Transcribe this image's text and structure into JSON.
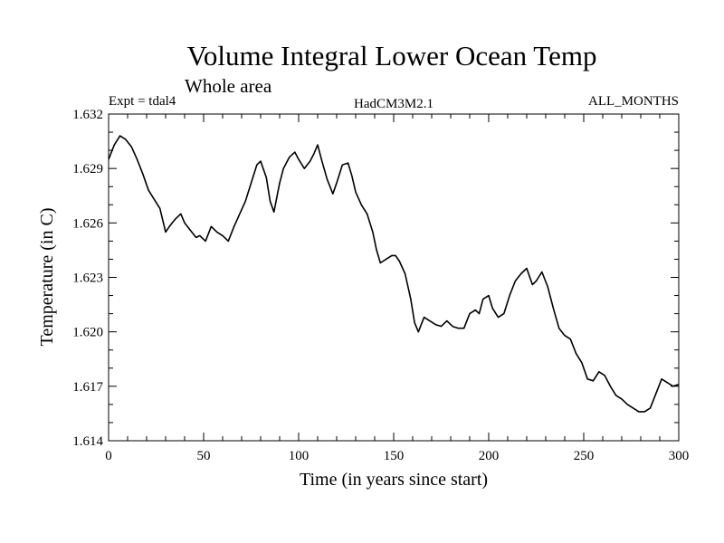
{
  "chart_data": {
    "type": "line",
    "title": "Volume Integral Lower Ocean Temp",
    "subtitle": "Whole area",
    "expt_label": "Expt = tdal4",
    "model_label": "HadCM3M2.1",
    "months_label": "ALL_MONTHS",
    "xlabel": "Time (in years since start)",
    "ylabel": "Temperature (in C)",
    "xlim": [
      0,
      300
    ],
    "ylim": [
      1.614,
      1.632
    ],
    "x_ticks": [
      0,
      50,
      100,
      150,
      200,
      250,
      300
    ],
    "x_tick_labels": [
      "0",
      "50",
      "100",
      "150",
      "200",
      "250",
      "300"
    ],
    "y_ticks": [
      1.614,
      1.617,
      1.62,
      1.623,
      1.626,
      1.629,
      1.632
    ],
    "y_tick_labels": [
      "1.614",
      "1.617",
      "1.620",
      "1.623",
      "1.626",
      "1.629",
      "1.632"
    ],
    "grid": false,
    "series": [
      {
        "name": "Volume Integral Lower Ocean Temp",
        "x": [
          0,
          3,
          6,
          9,
          12,
          15,
          18,
          21,
          24,
          27,
          30,
          32,
          35,
          38,
          40,
          43,
          46,
          48,
          51,
          54,
          57,
          60,
          63,
          66,
          69,
          72,
          75,
          78,
          80,
          83,
          85,
          87,
          90,
          92,
          95,
          98,
          100,
          103,
          106,
          108,
          110,
          112,
          115,
          118,
          120,
          123,
          126,
          128,
          130,
          133,
          136,
          139,
          141,
          143,
          146,
          149,
          151,
          153,
          156,
          159,
          161,
          163,
          166,
          169,
          172,
          175,
          178,
          181,
          184,
          187,
          190,
          193,
          195,
          197,
          200,
          202,
          205,
          208,
          211,
          214,
          217,
          220,
          223,
          225,
          228,
          231,
          234,
          237,
          240,
          243,
          246,
          249,
          252,
          255,
          258,
          261,
          264,
          267,
          270,
          273,
          276,
          279,
          282,
          285,
          288,
          291,
          294,
          297,
          300
        ],
        "values": [
          1.6295,
          1.6303,
          1.6308,
          1.6306,
          1.6302,
          1.6295,
          1.6287,
          1.6278,
          1.6273,
          1.6268,
          1.6255,
          1.6258,
          1.6262,
          1.6265,
          1.626,
          1.6256,
          1.6252,
          1.6253,
          1.625,
          1.6258,
          1.6255,
          1.6253,
          1.625,
          1.6258,
          1.6265,
          1.6272,
          1.6282,
          1.6292,
          1.6294,
          1.6285,
          1.6272,
          1.6266,
          1.6282,
          1.629,
          1.6296,
          1.6299,
          1.6295,
          1.629,
          1.6294,
          1.6298,
          1.6303,
          1.6295,
          1.6284,
          1.6276,
          1.6282,
          1.6292,
          1.6293,
          1.6286,
          1.6277,
          1.627,
          1.6265,
          1.6255,
          1.6245,
          1.6238,
          1.624,
          1.6242,
          1.6242,
          1.6239,
          1.6232,
          1.6218,
          1.6205,
          1.62,
          1.6208,
          1.6206,
          1.6204,
          1.6203,
          1.6206,
          1.6203,
          1.6202,
          1.6202,
          1.621,
          1.6212,
          1.621,
          1.6218,
          1.622,
          1.6213,
          1.6208,
          1.621,
          1.622,
          1.6228,
          1.6232,
          1.6235,
          1.6226,
          1.6228,
          1.6233,
          1.6225,
          1.6213,
          1.6202,
          1.6198,
          1.6196,
          1.6188,
          1.6183,
          1.6174,
          1.6173,
          1.6178,
          1.6176,
          1.617,
          1.6165,
          1.6163,
          1.616,
          1.6158,
          1.6156,
          1.6156,
          1.6158,
          1.6166,
          1.6174,
          1.6172,
          1.617,
          1.6171
        ]
      }
    ]
  }
}
